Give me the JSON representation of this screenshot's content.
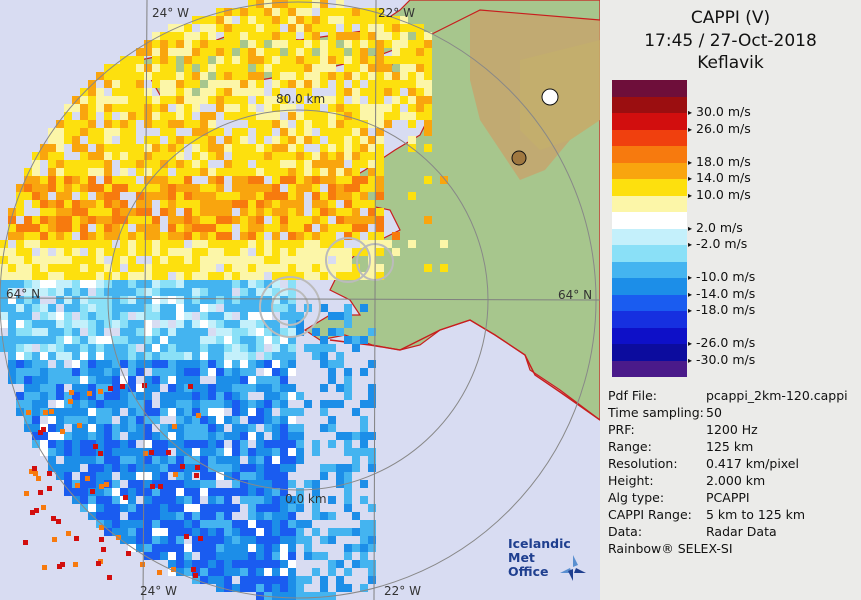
{
  "header": {
    "title": "CAPPI (V)",
    "datetime": "17:45 / 27-Oct-2018",
    "station": "Keflavik"
  },
  "map": {
    "labels": {
      "lon_24w_top": "24° W",
      "lon_22w_top": "22° W",
      "lon_24w_bottom": "24° W",
      "lon_22w_bottom": "22° W",
      "lat_64n_left": "64° N",
      "lat_64n_right": "64° N",
      "range_80": "80.0 km",
      "range_0": "0.0 km"
    },
    "colors": {
      "sea": "#d8dcf2",
      "land": "#a8c78f",
      "highland": "#c9a06a",
      "coast": "#c81e1e",
      "grid": "#8a8a8a"
    }
  },
  "legend": {
    "colors": [
      "#6e0e3a",
      "#9b0e10",
      "#d20e0e",
      "#f0400e",
      "#f77a0e",
      "#f9a50e",
      "#fde00e",
      "#fcf6a8",
      "#ffffff",
      "#c4f0fb",
      "#8ae0f7",
      "#44b4f0",
      "#1c8ee8",
      "#1a5cf0",
      "#1630e0",
      "#0e10c8",
      "#0c0c9e",
      "#4a1a8a"
    ],
    "ticks": [
      {
        "label": "30.0 m/s",
        "color_index": 1
      },
      {
        "label": "26.0 m/s",
        "color_index": 2
      },
      {
        "label": "18.0 m/s",
        "color_index": 4
      },
      {
        "label": "14.0 m/s",
        "color_index": 5
      },
      {
        "label": "10.0 m/s",
        "color_index": 6
      },
      {
        "label": "2.0 m/s",
        "color_index": 8
      },
      {
        "label": "-2.0 m/s",
        "color_index": 9
      },
      {
        "label": "-10.0 m/s",
        "color_index": 11
      },
      {
        "label": "-14.0 m/s",
        "color_index": 12
      },
      {
        "label": "-18.0 m/s",
        "color_index": 13
      },
      {
        "label": "-26.0 m/s",
        "color_index": 15
      },
      {
        "label": "-30.0 m/s",
        "color_index": 16
      }
    ]
  },
  "info": {
    "rows": [
      {
        "key": "Pdf File:",
        "value": "pcappi_2km-120.cappi"
      },
      {
        "key": "Time sampling:",
        "value": "50"
      },
      {
        "key": "PRF:",
        "value": "1200 Hz"
      },
      {
        "key": "Range:",
        "value": "125 km"
      },
      {
        "key": "Resolution:",
        "value": "0.417 km/pixel"
      },
      {
        "key": "Height:",
        "value": "2.000 km"
      },
      {
        "key": "Alg type:",
        "value": "PCAPPI"
      },
      {
        "key": "CAPPI Range:",
        "value": "5 km to 125 km"
      },
      {
        "key": "Data:",
        "value": "Radar Data"
      }
    ],
    "footer": "Rainbow® SELEX-SI"
  },
  "logo": {
    "line1": "Icelandic Met",
    "line2": "Office"
  }
}
